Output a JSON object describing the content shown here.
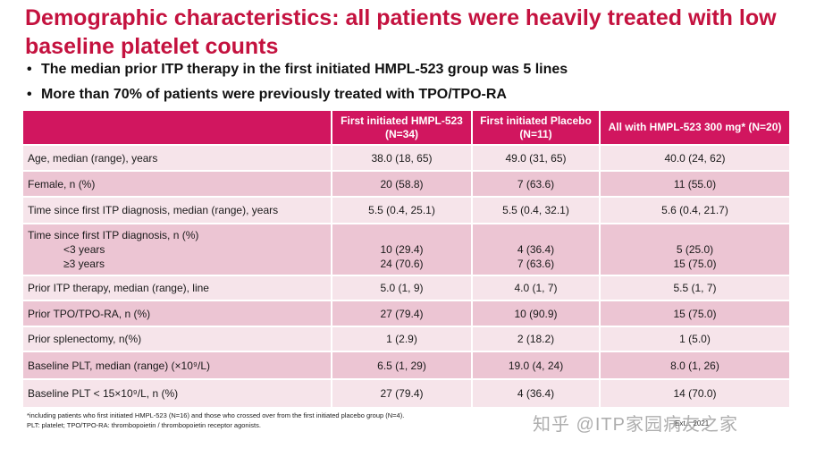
{
  "title": "Demographic characteristics: all patients were heavily treated with low baseline platelet counts",
  "bullets": [
    "The median prior ITP therapy in the first initiated HMPL-523 group was 5 lines",
    "More than 70% of patients were previously treated with TPO/TPO-RA"
  ],
  "table": {
    "headers": [
      "",
      "First initiated HMPL-523 (N=34)",
      "First initiated Placebo (N=11)",
      "All with HMPL-523 300 mg* (N=20)"
    ],
    "rows": [
      {
        "label": "Age, median (range), years",
        "v1": "38.0 (18, 65)",
        "v2": "49.0 (31, 65)",
        "v3": "40.0 (24, 62)"
      },
      {
        "label": "Female, n (%)",
        "v1": "20 (58.8)",
        "v2": "7 (63.6)",
        "v3": "11 (55.0)"
      },
      {
        "label": "Time since first ITP diagnosis, median (range), years",
        "v1": "5.5 (0.4, 25.1)",
        "v2": "5.5 (0.4, 32.1)",
        "v3": "5.6 (0.4, 21.7)"
      },
      {
        "label": "Time since first ITP diagnosis, n (%)",
        "sub1": "<3 years",
        "sub2": "≥3 years",
        "v1a": "10 (29.4)",
        "v1b": "24 (70.6)",
        "v2a": "4 (36.4)",
        "v2b": "7 (63.6)",
        "v3a": "5 (25.0)",
        "v3b": "15 (75.0)"
      },
      {
        "label": "Prior ITP therapy, median (range), line",
        "v1": "5.0 (1, 9)",
        "v2": "4.0 (1, 7)",
        "v3": "5.5 (1, 7)"
      },
      {
        "label": "Prior TPO/TPO-RA, n (%)",
        "v1": "27 (79.4)",
        "v2": "10 (90.9)",
        "v3": "15 (75.0)"
      },
      {
        "label": "Prior splenectomy, n(%)",
        "v1": "1 (2.9)",
        "v2": "2 (18.2)",
        "v3": "1 (5.0)"
      },
      {
        "label": "Baseline PLT, median (range) (×10⁹/L)",
        "v1": "6.5 (1, 29)",
        "v2": "19.0 (4, 24)",
        "v3": "8.0 (1, 26)"
      },
      {
        "label": "Baseline PLT < 15×10⁹/L, n (%)",
        "v1": "27 (79.4)",
        "v2": "4 (36.4)",
        "v3": "14 (70.0)"
      }
    ]
  },
  "footnotes": [
    "*including patients who first initiated HMPL-523 (N=16) and those who crossed over from the first initiated placebo group (N=4).",
    "PLT: platelet; TPO/TPO-RA: thrombopoietin / thrombopoietin receptor agonists."
  ],
  "reference": "Ext... 2021",
  "watermark": "知乎 @ITP家园病友之家"
}
